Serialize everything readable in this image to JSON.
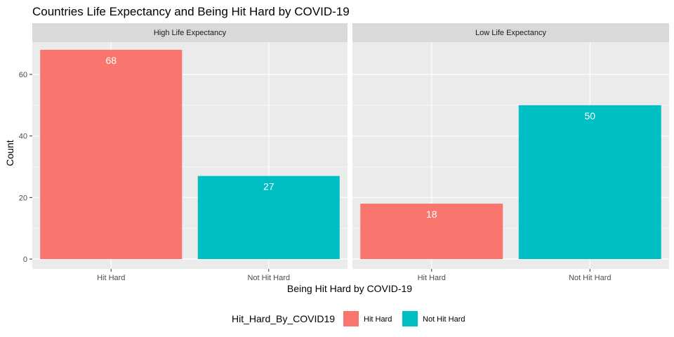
{
  "chart_data": {
    "type": "bar",
    "title": "Countries Life Expectancy and Being Hit Hard by COVID-19",
    "xlabel": "Being Hit Hard by COVID-19",
    "ylabel": "Count",
    "ylim": [
      0,
      70
    ],
    "yticks": [
      0,
      20,
      40,
      60
    ],
    "grid": true,
    "categories": [
      "Hit Hard",
      "Not Hit Hard"
    ],
    "colors": {
      "Hit Hard": "#F8766D",
      "Not Hit Hard": "#00BFC4"
    },
    "facets": [
      {
        "label": "High Life Expectancy",
        "values": [
          68,
          27
        ]
      },
      {
        "label": "Low Life Expectancy",
        "values": [
          18,
          50
        ]
      }
    ],
    "legend": {
      "title": "Hit_Hard_By_COVID19",
      "position": "bottom",
      "entries": [
        "Hit Hard",
        "Not Hit Hard"
      ]
    }
  }
}
